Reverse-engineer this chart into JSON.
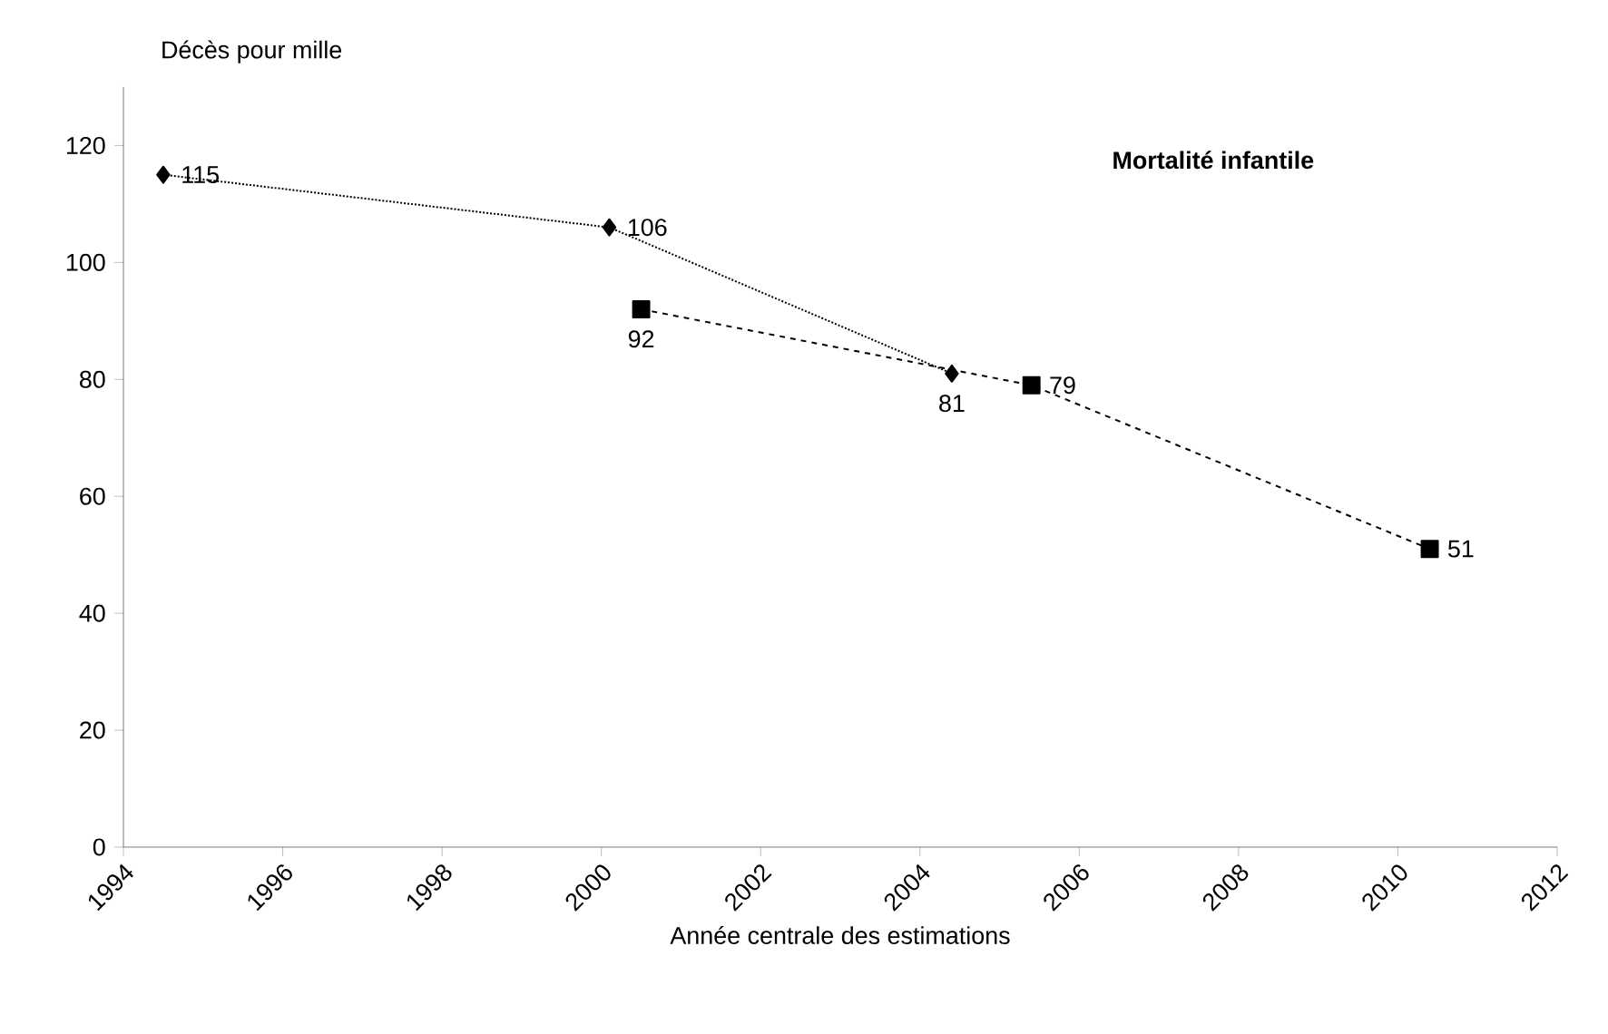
{
  "chart_data": {
    "type": "line",
    "title": "Mortalité infantile",
    "ylabel": "Décès pour mille",
    "xlabel": "Année centrale des estimations",
    "xlim": [
      1994,
      2012
    ],
    "xticks": [
      1994,
      1996,
      1998,
      2000,
      2002,
      2004,
      2006,
      2008,
      2010,
      2012
    ],
    "ylim": [
      0,
      130
    ],
    "yticks": [
      0,
      20,
      40,
      60,
      80,
      100,
      120
    ],
    "data_labels": true,
    "grid": false,
    "series": [
      {
        "color": "#000000",
        "marker": "diamond",
        "line_style": "dotted",
        "x": [
          1994.5,
          2000.1,
          2004.4
        ],
        "values": [
          115,
          106,
          81
        ]
      },
      {
        "color": "#000000",
        "marker": "square",
        "line_style": "dashed",
        "x": [
          2000.5,
          2005.4,
          2010.4
        ],
        "values": [
          92,
          79,
          51
        ]
      }
    ]
  }
}
